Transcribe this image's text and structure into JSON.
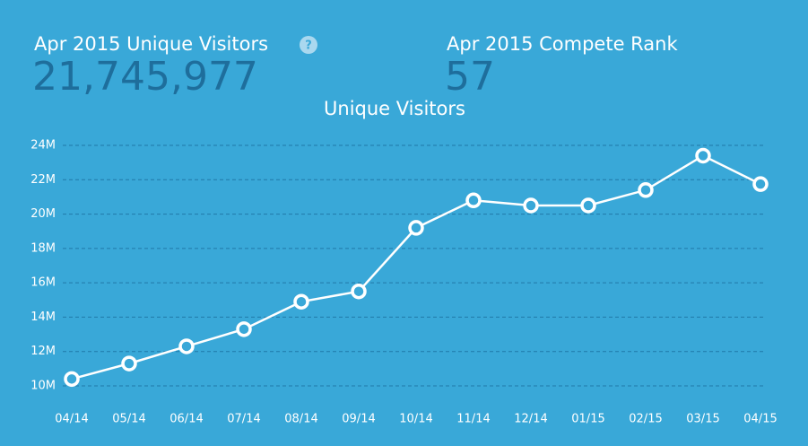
{
  "stats": [
    {
      "label": "Apr 2015 Unique Visitors",
      "value": "21,745,977",
      "help_icon": "?"
    },
    {
      "label": "Apr 2015 Compete Rank",
      "value": "57"
    }
  ],
  "chart_data": {
    "type": "line",
    "title": "Unique Visitors",
    "categories": [
      "04/14",
      "05/14",
      "06/14",
      "07/14",
      "08/14",
      "09/14",
      "10/14",
      "11/14",
      "12/14",
      "01/15",
      "02/15",
      "03/15",
      "04/15"
    ],
    "series": [
      {
        "name": "Unique Visitors",
        "color": "#ffffff",
        "values": [
          10400000,
          11300000,
          12300000,
          13300000,
          14900000,
          15500000,
          19200000,
          20800000,
          20500000,
          20500000,
          21400000,
          23400000,
          21745977
        ]
      }
    ],
    "ylim": [
      10000000,
      24000000
    ],
    "yticks": [
      {
        "value": 10000000,
        "label": "10M"
      },
      {
        "value": 12000000,
        "label": "12M"
      },
      {
        "value": 14000000,
        "label": "14M"
      },
      {
        "value": 16000000,
        "label": "16M"
      },
      {
        "value": 18000000,
        "label": "18M"
      },
      {
        "value": 20000000,
        "label": "20M"
      },
      {
        "value": 22000000,
        "label": "22M"
      },
      {
        "value": 24000000,
        "label": "24M"
      }
    ],
    "grid": true
  }
}
